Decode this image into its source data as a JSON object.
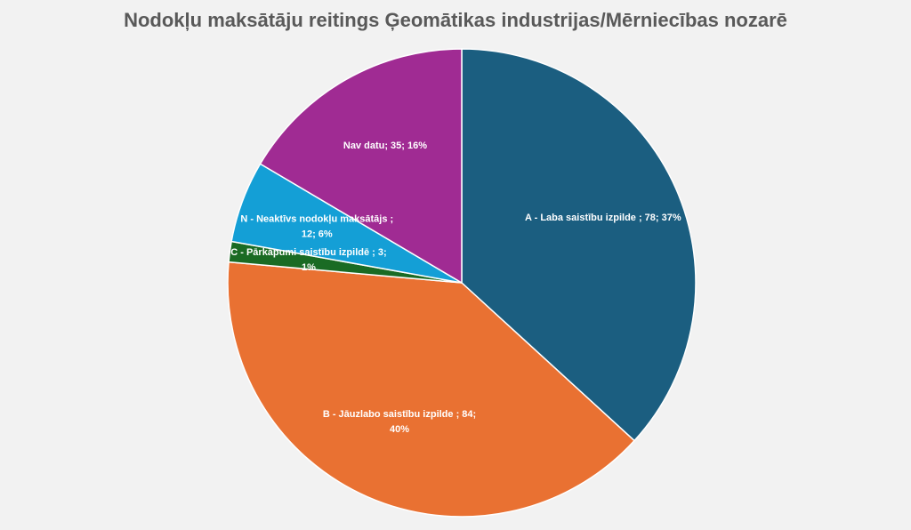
{
  "chart_data": {
    "type": "pie",
    "title": "Nodokļu maksātāju reitings Ģeomātikas industrijas/Mērniecības nozarē",
    "values": [
      78,
      84,
      3,
      12,
      35
    ],
    "value_labels": [
      [
        "A - Laba saistību izpilde ; 78; 37%"
      ],
      [
        "B - Jāuzlabo saistību izpilde ; 84;",
        "40%"
      ],
      [
        "C - Pārkāpumi saistību izpildē ; 3;",
        "1%"
      ],
      [
        "N - Neaktīvs nodokļu maksātājs ;",
        "12; 6%"
      ],
      [
        "Nav datu; 35; 16%"
      ]
    ],
    "colors": [
      "#1b5e80",
      "#e97132",
      "#1a6b24",
      "#149fd6",
      "#a02b93"
    ]
  }
}
